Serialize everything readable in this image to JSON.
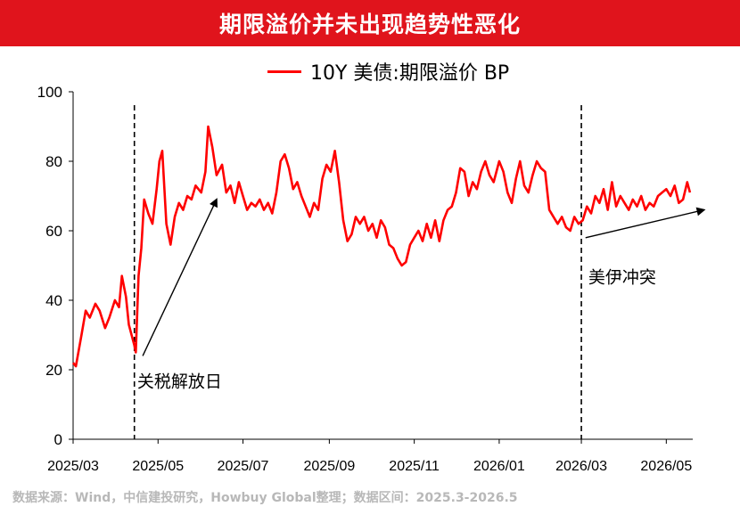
{
  "header": {
    "title": "期限溢价并未出现趋势性恶化"
  },
  "source": "数据来源：Wind，中信建投研究，Howbuy Global整理；数据区间：2025.3-2026.5",
  "colors": {
    "title_bg": "#e0141c",
    "series": "#ff0000"
  },
  "chart_data": {
    "type": "line",
    "title": "",
    "xlabel": "",
    "ylabel": "",
    "ylim": [
      0,
      100
    ],
    "yticks": [
      0,
      20,
      40,
      60,
      80,
      100
    ],
    "xlim": [
      "2025-03-01",
      "2026-05-20"
    ],
    "xticks": [
      {
        "date": "2025-03-01",
        "label": "2025/03"
      },
      {
        "date": "2025-05-01",
        "label": "2025/05"
      },
      {
        "date": "2025-07-01",
        "label": "2025/07"
      },
      {
        "date": "2025-09-01",
        "label": "2025/09"
      },
      {
        "date": "2025-11-01",
        "label": "2025/11"
      },
      {
        "date": "2026-01-01",
        "label": "2026/01"
      },
      {
        "date": "2026-03-01",
        "label": "2026/03"
      },
      {
        "date": "2026-05-01",
        "label": "2026/05"
      }
    ],
    "grid": false,
    "legend": "top-center",
    "series": [
      {
        "name": "10Y 美债:期限溢价 BP",
        "color": "#ff0000",
        "points": [
          [
            "2025-03-01",
            22
          ],
          [
            "2025-03-03",
            21
          ],
          [
            "2025-03-07",
            30
          ],
          [
            "2025-03-10",
            37
          ],
          [
            "2025-03-13",
            35
          ],
          [
            "2025-03-17",
            39
          ],
          [
            "2025-03-20",
            37
          ],
          [
            "2025-03-24",
            32
          ],
          [
            "2025-03-27",
            35
          ],
          [
            "2025-03-31",
            40
          ],
          [
            "2025-04-03",
            38
          ],
          [
            "2025-04-05",
            47
          ],
          [
            "2025-04-08",
            41
          ],
          [
            "2025-04-10",
            33
          ],
          [
            "2025-04-14",
            27
          ],
          [
            "2025-04-15",
            25
          ],
          [
            "2025-04-17",
            47
          ],
          [
            "2025-04-19",
            55
          ],
          [
            "2025-04-21",
            69
          ],
          [
            "2025-04-24",
            65
          ],
          [
            "2025-04-27",
            62
          ],
          [
            "2025-04-30",
            72
          ],
          [
            "2025-05-02",
            80
          ],
          [
            "2025-05-04",
            83
          ],
          [
            "2025-05-07",
            62
          ],
          [
            "2025-05-10",
            56
          ],
          [
            "2025-05-13",
            64
          ],
          [
            "2025-05-16",
            68
          ],
          [
            "2025-05-19",
            66
          ],
          [
            "2025-05-22",
            70
          ],
          [
            "2025-05-25",
            69
          ],
          [
            "2025-05-28",
            73
          ],
          [
            "2025-06-01",
            71
          ],
          [
            "2025-06-04",
            77
          ],
          [
            "2025-06-06",
            90
          ],
          [
            "2025-06-09",
            84
          ],
          [
            "2025-06-12",
            76
          ],
          [
            "2025-06-16",
            79
          ],
          [
            "2025-06-19",
            71
          ],
          [
            "2025-06-22",
            73
          ],
          [
            "2025-06-25",
            68
          ],
          [
            "2025-06-28",
            74
          ],
          [
            "2025-07-01",
            70
          ],
          [
            "2025-07-04",
            66
          ],
          [
            "2025-07-07",
            68
          ],
          [
            "2025-07-10",
            67
          ],
          [
            "2025-07-13",
            69
          ],
          [
            "2025-07-16",
            66
          ],
          [
            "2025-07-19",
            68
          ],
          [
            "2025-07-22",
            65
          ],
          [
            "2025-07-25",
            71
          ],
          [
            "2025-07-28",
            80
          ],
          [
            "2025-07-31",
            82
          ],
          [
            "2025-08-03",
            78
          ],
          [
            "2025-08-06",
            72
          ],
          [
            "2025-08-09",
            74
          ],
          [
            "2025-08-12",
            70
          ],
          [
            "2025-08-15",
            67
          ],
          [
            "2025-08-18",
            64
          ],
          [
            "2025-08-21",
            68
          ],
          [
            "2025-08-24",
            66
          ],
          [
            "2025-08-27",
            75
          ],
          [
            "2025-08-30",
            79
          ],
          [
            "2025-09-02",
            77
          ],
          [
            "2025-09-05",
            83
          ],
          [
            "2025-09-08",
            74
          ],
          [
            "2025-09-11",
            63
          ],
          [
            "2025-09-14",
            57
          ],
          [
            "2025-09-17",
            59
          ],
          [
            "2025-09-20",
            64
          ],
          [
            "2025-09-23",
            62
          ],
          [
            "2025-09-26",
            64
          ],
          [
            "2025-09-29",
            60
          ],
          [
            "2025-10-02",
            62
          ],
          [
            "2025-10-05",
            58
          ],
          [
            "2025-10-08",
            63
          ],
          [
            "2025-10-11",
            61
          ],
          [
            "2025-10-14",
            56
          ],
          [
            "2025-10-17",
            55
          ],
          [
            "2025-10-20",
            52
          ],
          [
            "2025-10-23",
            50
          ],
          [
            "2025-10-26",
            51
          ],
          [
            "2025-10-29",
            56
          ],
          [
            "2025-11-01",
            58
          ],
          [
            "2025-11-04",
            60
          ],
          [
            "2025-11-07",
            57
          ],
          [
            "2025-11-10",
            62
          ],
          [
            "2025-11-13",
            58
          ],
          [
            "2025-11-16",
            63
          ],
          [
            "2025-11-19",
            57
          ],
          [
            "2025-11-22",
            63
          ],
          [
            "2025-11-25",
            66
          ],
          [
            "2025-11-28",
            67
          ],
          [
            "2025-12-01",
            71
          ],
          [
            "2025-12-04",
            78
          ],
          [
            "2025-12-07",
            77
          ],
          [
            "2025-12-10",
            70
          ],
          [
            "2025-12-13",
            74
          ],
          [
            "2025-12-16",
            72
          ],
          [
            "2025-12-19",
            77
          ],
          [
            "2025-12-22",
            80
          ],
          [
            "2025-12-25",
            76
          ],
          [
            "2025-12-28",
            74
          ],
          [
            "2026-01-01",
            80
          ],
          [
            "2026-01-04",
            77
          ],
          [
            "2026-01-07",
            71
          ],
          [
            "2026-01-10",
            68
          ],
          [
            "2026-01-13",
            75
          ],
          [
            "2026-01-16",
            80
          ],
          [
            "2026-01-19",
            73
          ],
          [
            "2026-01-22",
            71
          ],
          [
            "2026-01-25",
            76
          ],
          [
            "2026-01-28",
            80
          ],
          [
            "2026-01-31",
            78
          ],
          [
            "2026-02-03",
            77
          ],
          [
            "2026-02-06",
            66
          ],
          [
            "2026-02-09",
            64
          ],
          [
            "2026-02-12",
            62
          ],
          [
            "2026-02-15",
            64
          ],
          [
            "2026-02-18",
            61
          ],
          [
            "2026-02-21",
            60
          ],
          [
            "2026-02-24",
            64
          ],
          [
            "2026-02-27",
            62
          ],
          [
            "2026-03-02",
            63
          ],
          [
            "2026-03-05",
            67
          ],
          [
            "2026-03-08",
            65
          ],
          [
            "2026-03-11",
            70
          ],
          [
            "2026-03-14",
            68
          ],
          [
            "2026-03-17",
            72
          ],
          [
            "2026-03-20",
            66
          ],
          [
            "2026-03-23",
            74
          ],
          [
            "2026-03-26",
            67
          ],
          [
            "2026-03-29",
            70
          ],
          [
            "2026-04-01",
            68
          ],
          [
            "2026-04-04",
            66
          ],
          [
            "2026-04-07",
            69
          ],
          [
            "2026-04-10",
            67
          ],
          [
            "2026-04-13",
            70
          ],
          [
            "2026-04-16",
            66
          ],
          [
            "2026-04-19",
            68
          ],
          [
            "2026-04-22",
            67
          ],
          [
            "2026-04-25",
            70
          ],
          [
            "2026-04-28",
            71
          ],
          [
            "2026-05-01",
            72
          ],
          [
            "2026-05-04",
            70
          ],
          [
            "2026-05-07",
            73
          ],
          [
            "2026-05-10",
            68
          ],
          [
            "2026-05-13",
            69
          ],
          [
            "2026-05-16",
            74
          ],
          [
            "2026-05-18",
            71
          ]
        ]
      }
    ],
    "vlines": [
      {
        "date": "2025-04-14",
        "style": "dashed"
      },
      {
        "date": "2026-03-01",
        "style": "dashed"
      }
    ],
    "annotations": [
      {
        "text": "关税解放日",
        "anchor_date": "2025-04-16",
        "anchor_value": 15
      },
      {
        "text": "美伊冲突",
        "anchor_date": "2026-03-06",
        "anchor_value": 45
      }
    ],
    "arrows": [
      {
        "from_date": "2025-04-20",
        "from_value": 24,
        "to_date": "2025-06-12",
        "to_value": 69
      },
      {
        "from_date": "2026-03-04",
        "from_value": 58,
        "to_date": "2026-05-28",
        "to_value": 66
      }
    ]
  }
}
